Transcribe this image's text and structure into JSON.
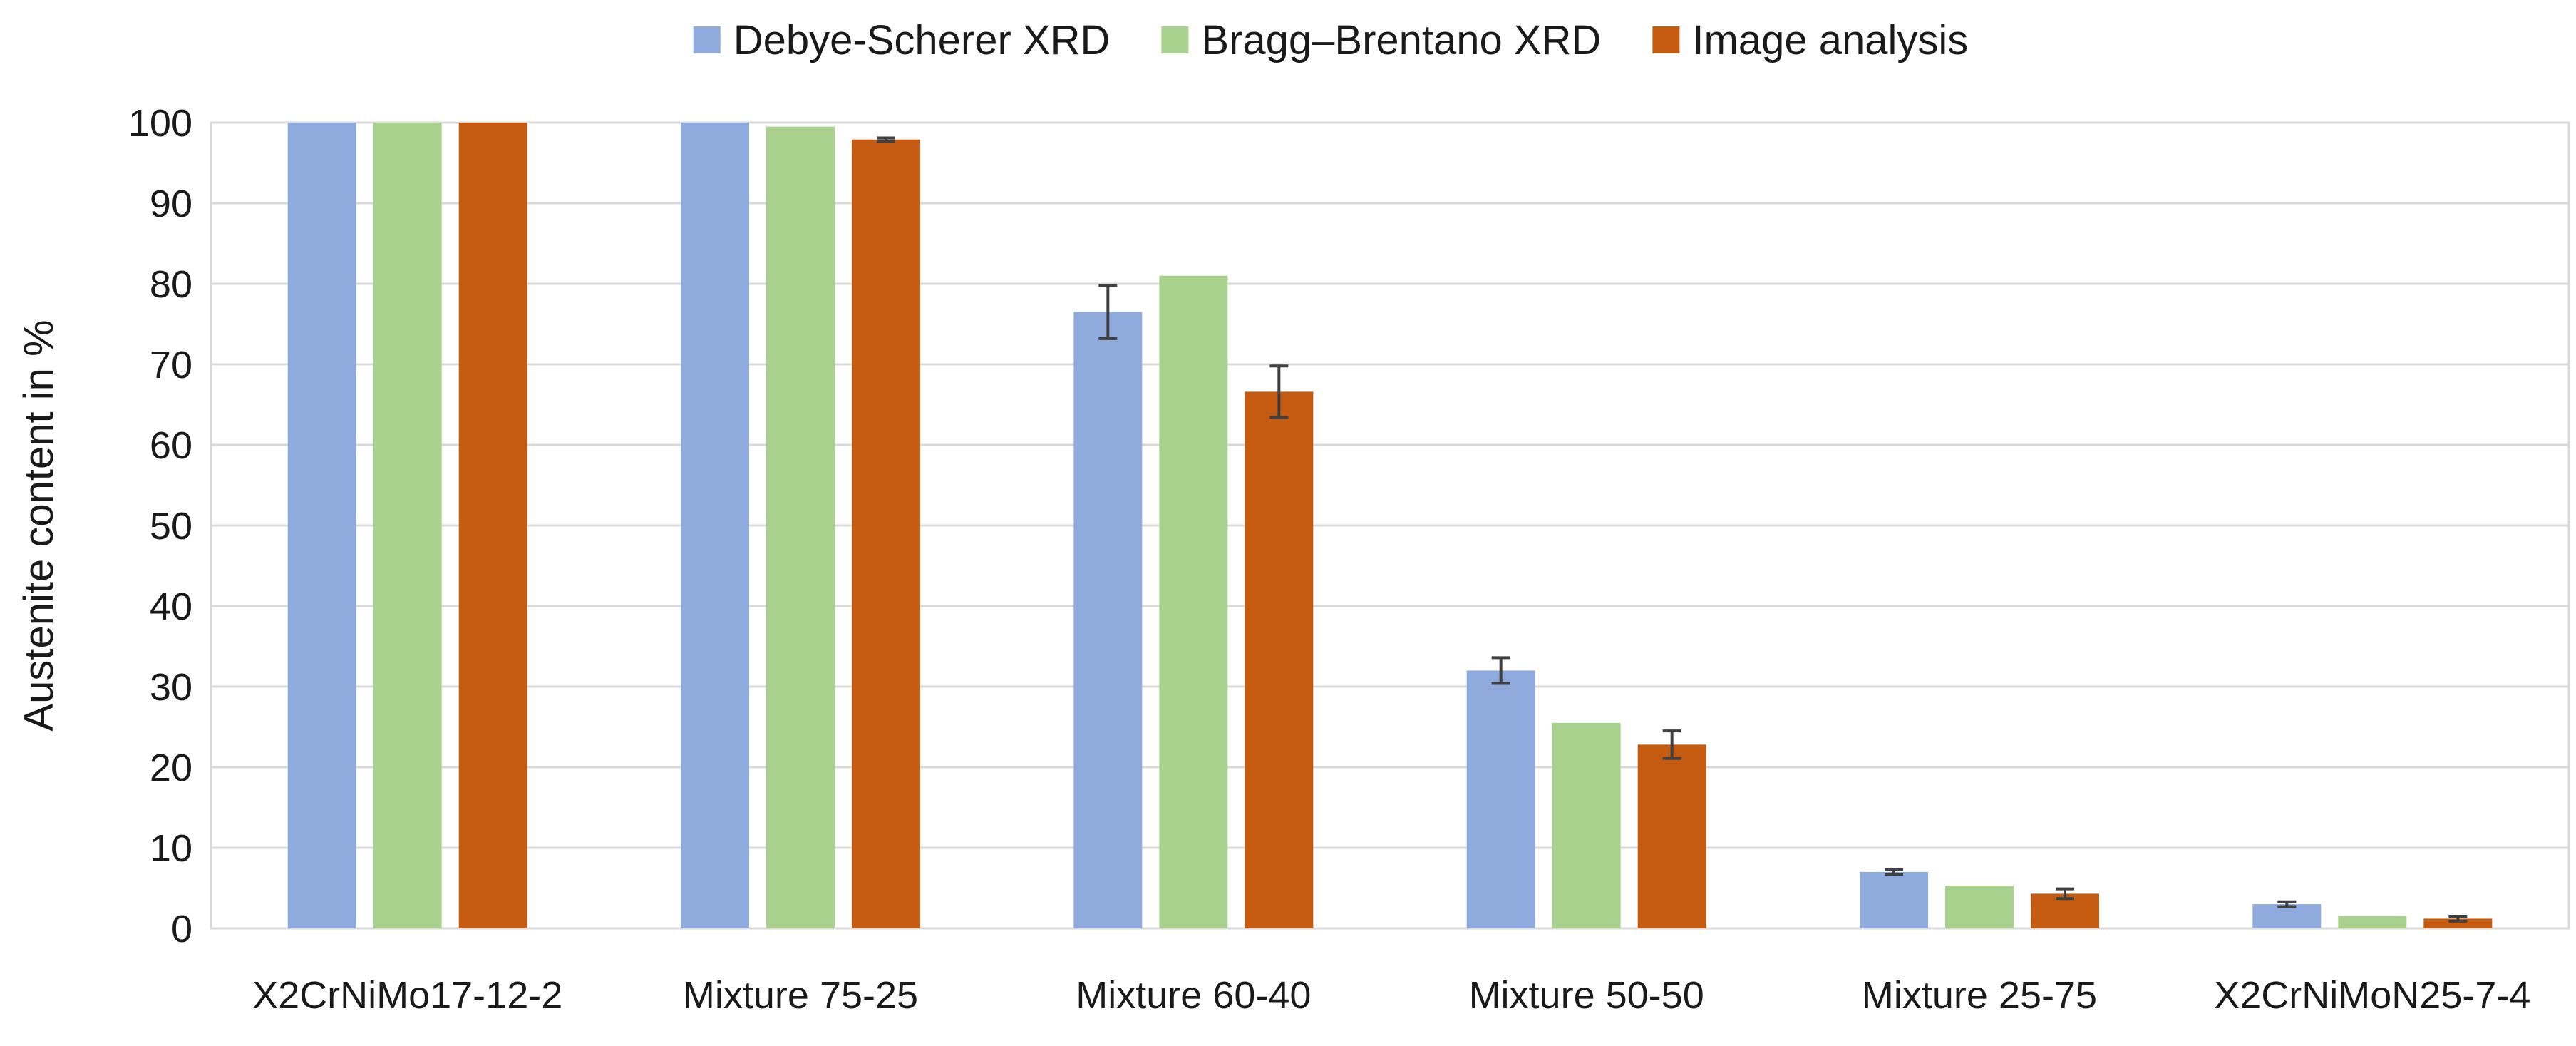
{
  "chart_data": {
    "type": "bar",
    "title": "",
    "xlabel": "",
    "ylabel": "Austenite content in %",
    "ylim": [
      0,
      100
    ],
    "yticks": [
      0,
      10,
      20,
      30,
      40,
      50,
      60,
      70,
      80,
      90,
      100
    ],
    "grid": true,
    "legend_position": "top",
    "categories": [
      "X2CrNiMo17-12-2",
      "Mixture 75-25",
      "Mixture 60-40",
      "Mixture 50-50",
      "Mixture 25-75",
      "X2CrNiMoN25-7-4"
    ],
    "series": [
      {
        "name": "Debye-Scherer XRD",
        "color": "#8faadc",
        "values": [
          100,
          100,
          76.5,
          32,
          7,
          3
        ],
        "errors": [
          null,
          null,
          3.3,
          1.6,
          0.3,
          0.3
        ]
      },
      {
        "name": "Bragg–Brentano XRD",
        "color": "#a9d18e",
        "values": [
          100,
          99.5,
          81,
          25.5,
          5.3,
          1.5
        ],
        "errors": [
          null,
          null,
          null,
          null,
          null,
          null
        ]
      },
      {
        "name": "Image analysis",
        "color": "#c55a11",
        "values": [
          100,
          97.9,
          66.6,
          22.8,
          4.3,
          1.2
        ],
        "errors": [
          null,
          0.2,
          3.2,
          1.7,
          0.6,
          0.3
        ]
      }
    ]
  }
}
